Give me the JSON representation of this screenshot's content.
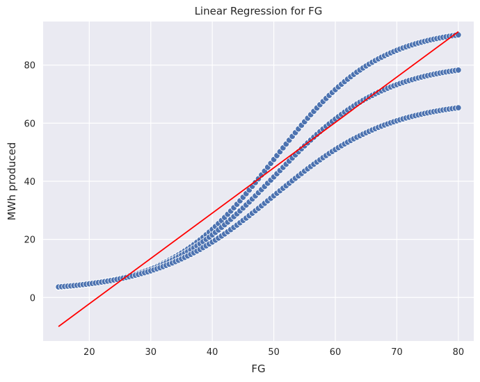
{
  "chart_data": {
    "type": "scatter",
    "title": "Linear Regression for FG",
    "xlabel": "FG",
    "ylabel": "MWh produced",
    "xlim": [
      12.5,
      82.5
    ],
    "ylim": [
      -15,
      95
    ],
    "xticks": [
      20,
      30,
      40,
      50,
      60,
      70,
      80
    ],
    "yticks": [
      0,
      20,
      40,
      60,
      80
    ],
    "grid": true,
    "background": "#eaeaf2",
    "point_color": "#4c72b0",
    "line_color": "#ff0000",
    "series": [
      {
        "kind": "scatter",
        "x_range": [
          15,
          80
        ],
        "x_step": 0.5,
        "curves": [
          {
            "low": 2,
            "high": 93,
            "center": 50,
            "width": 8.5
          },
          {
            "low": 2,
            "high": 81,
            "center": 50,
            "width": 9
          },
          {
            "low": 2,
            "high": 68,
            "center": 50,
            "width": 9.5
          }
        ]
      },
      {
        "kind": "regression-line",
        "points": [
          [
            15,
            -10
          ],
          [
            80,
            91.5
          ]
        ]
      }
    ]
  }
}
